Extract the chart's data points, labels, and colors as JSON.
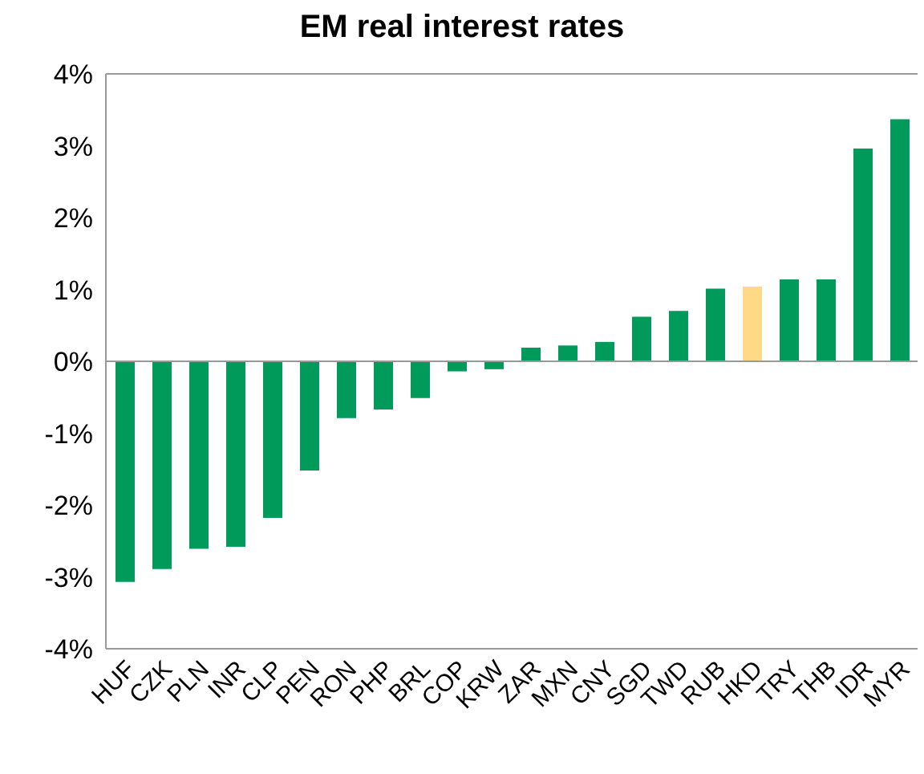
{
  "chart_data": {
    "type": "bar",
    "title": "EM real interest rates",
    "categories": [
      "HUF",
      "CZK",
      "PLN",
      "INR",
      "CLP",
      "PEN",
      "RON",
      "PHP",
      "BRL",
      "COP",
      "KRW",
      "ZAR",
      "MXN",
      "CNY",
      "SGD",
      "TWD",
      "RUB",
      "HKD",
      "TRY",
      "THB",
      "IDR",
      "MYR"
    ],
    "values": [
      -3.07,
      -2.89,
      -2.61,
      -2.58,
      -2.18,
      -1.52,
      -0.79,
      -0.67,
      -0.51,
      -0.14,
      -0.11,
      0.19,
      0.22,
      0.27,
      0.62,
      0.7,
      1.01,
      1.04,
      1.14,
      1.14,
      2.96,
      3.37
    ],
    "colors": [
      "#009a5b",
      "#009a5b",
      "#009a5b",
      "#009a5b",
      "#009a5b",
      "#009a5b",
      "#009a5b",
      "#009a5b",
      "#009a5b",
      "#009a5b",
      "#009a5b",
      "#009a5b",
      "#009a5b",
      "#009a5b",
      "#009a5b",
      "#009a5b",
      "#009a5b",
      "#ffd986",
      "#009a5b",
      "#009a5b",
      "#009a5b",
      "#009a5b"
    ],
    "ylim": [
      -4,
      4
    ],
    "yticks": [
      {
        "value": -4,
        "label": "-4%"
      },
      {
        "value": -3,
        "label": "-3%"
      },
      {
        "value": -2,
        "label": "-2%"
      },
      {
        "value": -1,
        "label": "-1%"
      },
      {
        "value": 0,
        "label": "0%"
      },
      {
        "value": 1,
        "label": "1%"
      },
      {
        "value": 2,
        "label": "2%"
      },
      {
        "value": 3,
        "label": "3%"
      },
      {
        "value": 4,
        "label": "4%"
      }
    ],
    "legend": false
  }
}
